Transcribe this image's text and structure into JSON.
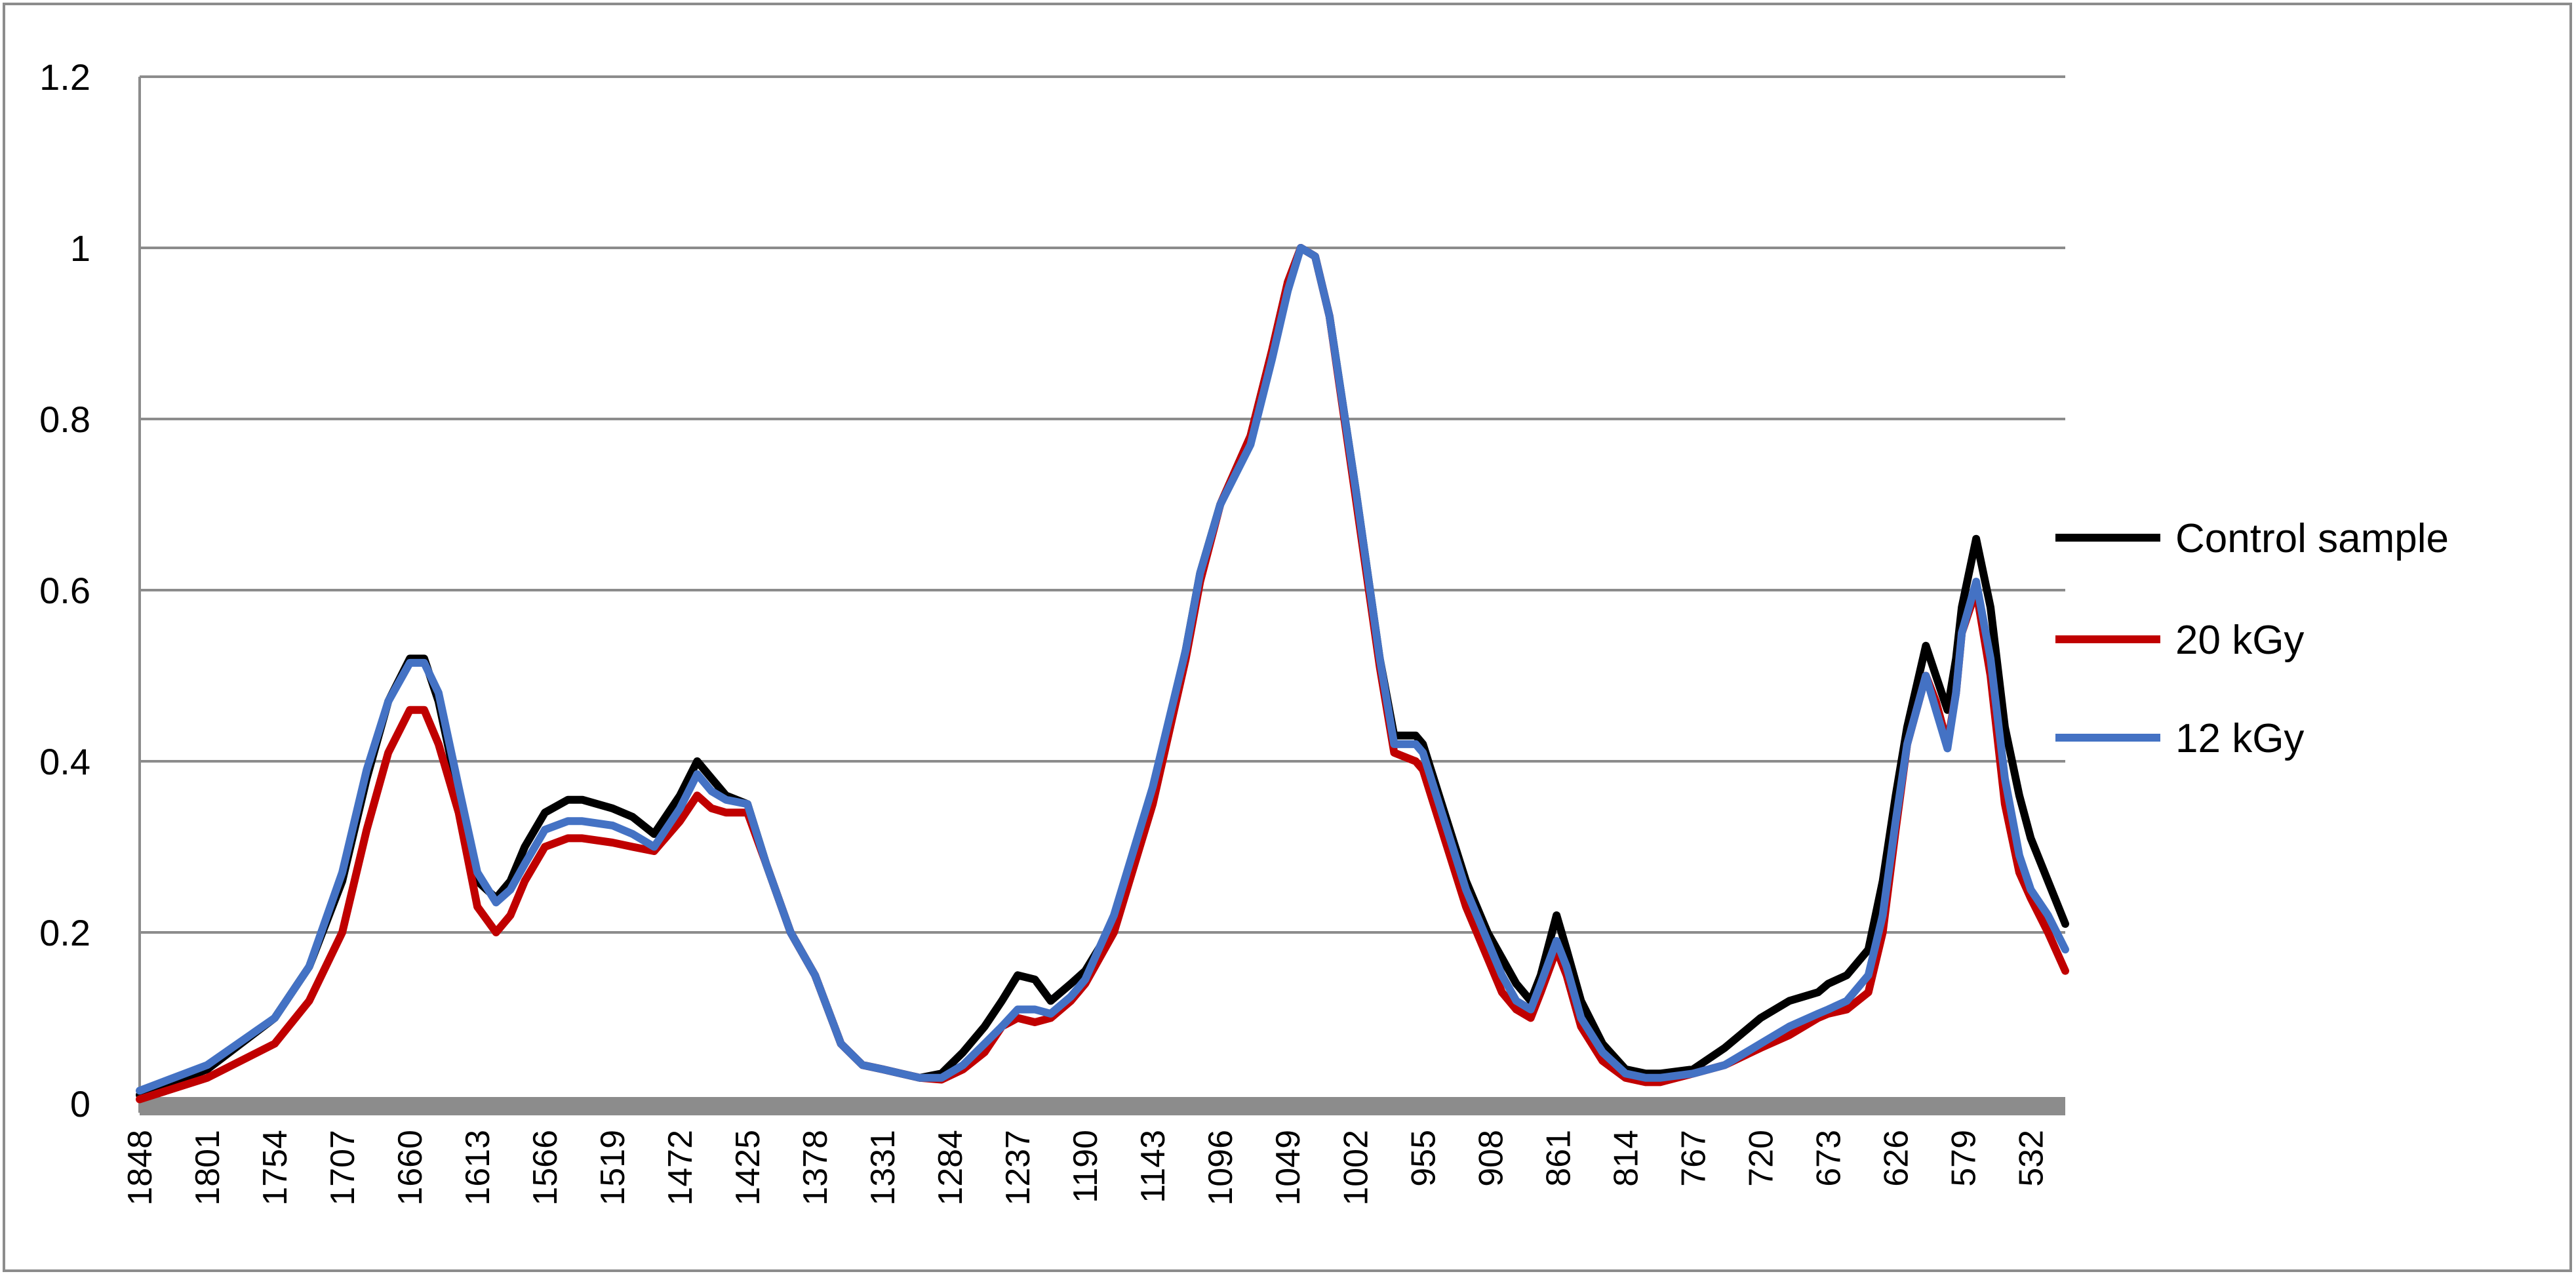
{
  "chart_data": {
    "type": "line",
    "title": "",
    "xlabel": "",
    "ylabel": "",
    "x_reversed": true,
    "xlim": [
      1848,
      508
    ],
    "ylim": [
      0,
      1.2
    ],
    "y_ticks": [
      "0",
      "0.2",
      "0.4",
      "0.6",
      "0.8",
      "1",
      "1.2"
    ],
    "x_ticks": [
      "1848",
      "1801",
      "1754",
      "1707",
      "1660",
      "1613",
      "1566",
      "1519",
      "1472",
      "1425",
      "1378",
      "1331",
      "1284",
      "1237",
      "1190",
      "1143",
      "1096",
      "1049",
      "1002",
      "955",
      "908",
      "861",
      "814",
      "767",
      "720",
      "673",
      "626",
      "579",
      "532"
    ],
    "grid": true,
    "legend_position": "right",
    "x": [
      1848,
      1801,
      1754,
      1730,
      1707,
      1690,
      1675,
      1660,
      1650,
      1640,
      1626,
      1613,
      1600,
      1590,
      1580,
      1566,
      1550,
      1540,
      1519,
      1505,
      1490,
      1472,
      1460,
      1450,
      1440,
      1425,
      1412,
      1395,
      1378,
      1360,
      1345,
      1331,
      1318,
      1305,
      1290,
      1275,
      1260,
      1248,
      1237,
      1225,
      1214,
      1200,
      1190,
      1170,
      1143,
      1120,
      1110,
      1096,
      1075,
      1060,
      1049,
      1040,
      1030,
      1020,
      1002,
      985,
      975,
      960,
      955,
      940,
      925,
      910,
      900,
      890,
      880,
      873,
      862,
      855,
      845,
      830,
      814,
      800,
      790,
      767,
      745,
      720,
      700,
      680,
      673,
      660,
      645,
      635,
      626,
      618,
      605,
      598,
      590,
      584,
      580,
      570,
      560,
      550,
      540,
      532,
      520,
      508
    ],
    "series": [
      {
        "name": "Control sample",
        "color": "#000000",
        "values": [
          0.01,
          0.04,
          0.1,
          0.16,
          0.26,
          0.38,
          0.47,
          0.52,
          0.52,
          0.47,
          0.36,
          0.26,
          0.24,
          0.26,
          0.3,
          0.34,
          0.355,
          0.355,
          0.345,
          0.335,
          0.315,
          0.36,
          0.4,
          0.38,
          0.36,
          0.35,
          0.28,
          0.2,
          0.15,
          0.07,
          0.045,
          0.04,
          0.035,
          0.03,
          0.035,
          0.06,
          0.09,
          0.12,
          0.15,
          0.145,
          0.12,
          0.14,
          0.155,
          0.21,
          0.36,
          0.53,
          0.62,
          0.7,
          0.78,
          0.88,
          0.96,
          1.0,
          0.99,
          0.92,
          0.72,
          0.52,
          0.43,
          0.43,
          0.42,
          0.34,
          0.26,
          0.2,
          0.17,
          0.14,
          0.12,
          0.15,
          0.22,
          0.18,
          0.12,
          0.07,
          0.04,
          0.035,
          0.035,
          0.04,
          0.065,
          0.1,
          0.12,
          0.13,
          0.14,
          0.15,
          0.18,
          0.26,
          0.36,
          0.44,
          0.535,
          0.5,
          0.46,
          0.52,
          0.58,
          0.66,
          0.58,
          0.44,
          0.36,
          0.31,
          0.26,
          0.21
        ]
      },
      {
        "name": "20 kGy",
        "color": "#c00000",
        "values": [
          0.005,
          0.03,
          0.07,
          0.12,
          0.2,
          0.32,
          0.41,
          0.46,
          0.46,
          0.42,
          0.34,
          0.23,
          0.2,
          0.22,
          0.26,
          0.3,
          0.31,
          0.31,
          0.305,
          0.3,
          0.295,
          0.33,
          0.36,
          0.345,
          0.34,
          0.34,
          0.28,
          0.2,
          0.15,
          0.07,
          0.045,
          0.04,
          0.035,
          0.03,
          0.028,
          0.04,
          0.06,
          0.09,
          0.1,
          0.095,
          0.1,
          0.12,
          0.14,
          0.2,
          0.35,
          0.52,
          0.61,
          0.7,
          0.78,
          0.88,
          0.96,
          1.0,
          0.99,
          0.92,
          0.71,
          0.51,
          0.41,
          0.4,
          0.39,
          0.31,
          0.23,
          0.17,
          0.13,
          0.11,
          0.1,
          0.13,
          0.18,
          0.15,
          0.09,
          0.05,
          0.03,
          0.025,
          0.025,
          0.035,
          0.045,
          0.065,
          0.08,
          0.1,
          0.105,
          0.11,
          0.13,
          0.2,
          0.32,
          0.42,
          0.5,
          0.47,
          0.42,
          0.48,
          0.55,
          0.6,
          0.5,
          0.35,
          0.27,
          0.24,
          0.2,
          0.155
        ]
      },
      {
        "name": "12 kGy",
        "color": "#4472c4",
        "values": [
          0.015,
          0.045,
          0.1,
          0.16,
          0.27,
          0.39,
          0.47,
          0.515,
          0.515,
          0.48,
          0.37,
          0.27,
          0.235,
          0.25,
          0.28,
          0.32,
          0.33,
          0.33,
          0.325,
          0.315,
          0.3,
          0.345,
          0.385,
          0.365,
          0.355,
          0.35,
          0.28,
          0.2,
          0.15,
          0.07,
          0.045,
          0.04,
          0.035,
          0.03,
          0.03,
          0.045,
          0.07,
          0.09,
          0.11,
          0.11,
          0.105,
          0.125,
          0.145,
          0.22,
          0.37,
          0.53,
          0.62,
          0.7,
          0.77,
          0.87,
          0.95,
          1.0,
          0.99,
          0.92,
          0.72,
          0.52,
          0.42,
          0.42,
          0.41,
          0.33,
          0.25,
          0.19,
          0.15,
          0.12,
          0.11,
          0.14,
          0.19,
          0.16,
          0.1,
          0.06,
          0.035,
          0.03,
          0.03,
          0.035,
          0.045,
          0.07,
          0.09,
          0.105,
          0.11,
          0.12,
          0.15,
          0.22,
          0.33,
          0.42,
          0.5,
          0.46,
          0.415,
          0.48,
          0.55,
          0.61,
          0.52,
          0.38,
          0.29,
          0.25,
          0.22,
          0.18
        ]
      }
    ]
  }
}
